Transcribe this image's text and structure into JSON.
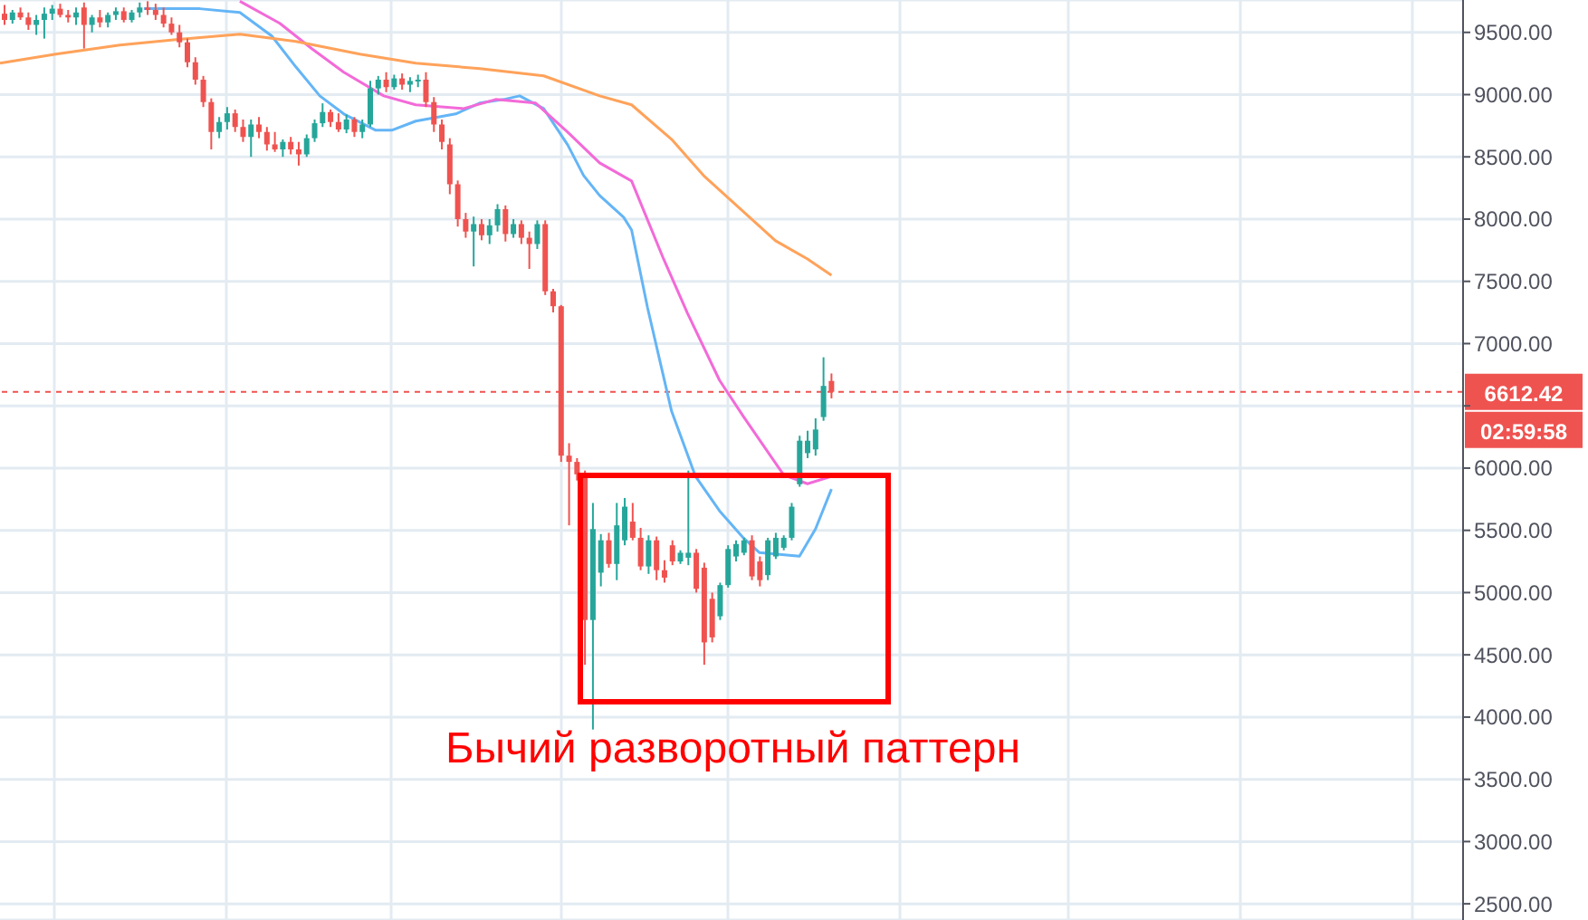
{
  "chart_data": {
    "type": "candlestick",
    "categories": [
      null,
      null,
      null,
      null,
      null,
      null,
      null,
      null,
      null,
      null,
      null,
      null,
      null,
      null,
      null,
      null,
      null,
      null,
      null,
      null,
      null,
      null,
      null,
      null,
      null,
      null,
      null,
      null,
      null,
      null,
      null,
      null,
      null,
      null,
      null,
      null,
      null,
      null,
      null,
      null,
      null,
      null,
      null,
      null,
      null,
      null,
      null,
      null,
      null,
      null,
      null,
      null,
      null,
      null,
      null,
      null,
      null,
      null,
      null,
      null,
      null,
      null,
      null,
      null,
      null,
      null,
      null,
      null,
      null,
      null,
      null,
      null,
      null,
      null,
      null,
      null,
      null,
      null,
      null,
      null,
      null,
      null,
      null,
      null,
      null,
      null,
      null,
      null,
      null,
      null,
      null,
      null,
      null,
      null,
      null,
      null,
      null,
      null,
      null,
      null,
      null,
      null,
      null,
      null,
      null,
      null,
      null,
      null,
      null,
      null,
      null,
      null,
      null,
      null,
      null,
      null,
      null,
      null,
      null,
      null,
      null,
      null,
      null,
      null,
      null,
      null,
      null,
      null,
      null,
      null,
      null,
      null,
      null,
      null,
      null,
      null,
      null,
      null,
      null,
      null,
      null,
      null,
      null,
      null,
      null,
      null,
      null,
      null,
      null,
      null,
      null,
      null,
      null,
      null,
      null,
      null,
      null,
      null,
      null,
      null,
      null,
      null,
      null,
      null,
      null,
      null,
      null,
      null,
      null,
      null,
      null,
      null,
      null,
      null,
      null,
      null,
      null,
      null,
      null,
      null,
      null,
      null,
      null,
      null
    ],
    "ohlc": [
      [
        9650,
        9720,
        9560,
        9600
      ],
      [
        9600,
        9680,
        9570,
        9660
      ],
      [
        9660,
        9700,
        9600,
        9620
      ],
      [
        9620,
        9660,
        9520,
        9560
      ],
      [
        9560,
        9640,
        9480,
        9600
      ],
      [
        9600,
        9700,
        9450,
        9650
      ],
      [
        9650,
        9720,
        9600,
        9690
      ],
      [
        9690,
        9730,
        9620,
        9640
      ],
      [
        9640,
        9680,
        9580,
        9620
      ],
      [
        9620,
        9700,
        9560,
        9660
      ],
      [
        9700,
        9740,
        9370,
        9560
      ],
      [
        9560,
        9640,
        9500,
        9620
      ],
      [
        9620,
        9680,
        9540,
        9580
      ],
      [
        9580,
        9660,
        9540,
        9640
      ],
      [
        9640,
        9700,
        9600,
        9670
      ],
      [
        9670,
        9700,
        9580,
        9600
      ],
      [
        9600,
        9680,
        9580,
        9660
      ],
      [
        9660,
        9740,
        9620,
        9700
      ],
      [
        9700,
        9750,
        9640,
        9680
      ],
      [
        9680,
        9730,
        9600,
        9640
      ],
      [
        9640,
        9700,
        9540,
        9570
      ],
      [
        9570,
        9620,
        9480,
        9500
      ],
      [
        9500,
        9560,
        9380,
        9420
      ],
      [
        9420,
        9450,
        9220,
        9260
      ],
      [
        9260,
        9300,
        9080,
        9120
      ],
      [
        9120,
        9150,
        8900,
        8940
      ],
      [
        8940,
        8970,
        8560,
        8700
      ],
      [
        8700,
        8820,
        8650,
        8780
      ],
      [
        8780,
        8900,
        8720,
        8850
      ],
      [
        8850,
        8880,
        8700,
        8740
      ],
      [
        8740,
        8800,
        8620,
        8660
      ],
      [
        8660,
        8800,
        8500,
        8760
      ],
      [
        8760,
        8820,
        8650,
        8700
      ],
      [
        8700,
        8740,
        8550,
        8600
      ],
      [
        8600,
        8700,
        8540,
        8560
      ],
      [
        8560,
        8640,
        8500,
        8620
      ],
      [
        8620,
        8660,
        8520,
        8560
      ],
      [
        8560,
        8620,
        8430,
        8520
      ],
      [
        8520,
        8680,
        8500,
        8650
      ],
      [
        8650,
        8800,
        8620,
        8770
      ],
      [
        8770,
        8930,
        8740,
        8860
      ],
      [
        8860,
        8880,
        8740,
        8780
      ],
      [
        8780,
        8850,
        8700,
        8720
      ],
      [
        8720,
        8840,
        8690,
        8800
      ],
      [
        8800,
        8820,
        8660,
        8700
      ],
      [
        8700,
        8800,
        8650,
        8760
      ],
      [
        8760,
        9110,
        8740,
        9050
      ],
      [
        9050,
        9150,
        9000,
        9120
      ],
      [
        9120,
        9180,
        9020,
        9060
      ],
      [
        9060,
        9160,
        9040,
        9130
      ],
      [
        9130,
        9170,
        9040,
        9080
      ],
      [
        9080,
        9140,
        9020,
        9110
      ],
      [
        9110,
        9160,
        9060,
        9120
      ],
      [
        9120,
        9180,
        8900,
        8940
      ],
      [
        8940,
        8980,
        8700,
        8760
      ],
      [
        8760,
        8800,
        8560,
        8620
      ],
      [
        8600,
        8650,
        8200,
        8280
      ],
      [
        8280,
        8310,
        7940,
        8000
      ],
      [
        8000,
        8050,
        7850,
        7900
      ],
      [
        7900,
        8020,
        7620,
        7960
      ],
      [
        7960,
        8000,
        7830,
        7870
      ],
      [
        7870,
        8000,
        7800,
        7950
      ],
      [
        7950,
        8120,
        7900,
        8080
      ],
      [
        8080,
        8110,
        7820,
        7880
      ],
      [
        7880,
        8000,
        7850,
        7960
      ],
      [
        7960,
        7990,
        7800,
        7850
      ],
      [
        7850,
        7900,
        7600,
        7800
      ],
      [
        7800,
        7990,
        7760,
        7960
      ],
      [
        7960,
        7990,
        7390,
        7420
      ],
      [
        7420,
        7440,
        7250,
        7300
      ],
      [
        7300,
        7310,
        6050,
        6100
      ],
      [
        6100,
        6200,
        5540,
        6050
      ],
      [
        6050,
        6080,
        5900,
        5950
      ],
      [
        5950,
        5980,
        4420,
        4780
      ],
      [
        4780,
        5720,
        3900,
        5510
      ],
      [
        5160,
        5470,
        5050,
        5420
      ],
      [
        5420,
        5480,
        5200,
        5230
      ],
      [
        5230,
        5720,
        5100,
        5540
      ],
      [
        5420,
        5760,
        5380,
        5690
      ],
      [
        5570,
        5720,
        5420,
        5440
      ],
      [
        5440,
        5520,
        5180,
        5210
      ],
      [
        5210,
        5460,
        5150,
        5420
      ],
      [
        5420,
        5450,
        5100,
        5180
      ],
      [
        5180,
        5260,
        5080,
        5120
      ],
      [
        5380,
        5420,
        5220,
        5250
      ],
      [
        5250,
        5340,
        5230,
        5320
      ],
      [
        5280,
        5980,
        5220,
        5320
      ],
      [
        5320,
        5350,
        5000,
        5030
      ],
      [
        5200,
        5240,
        4420,
        4600
      ],
      [
        4950,
        5000,
        4600,
        4640
      ],
      [
        4810,
        5080,
        4780,
        5060
      ],
      [
        5060,
        5380,
        5040,
        5350
      ],
      [
        5290,
        5420,
        5250,
        5390
      ],
      [
        5320,
        5440,
        5300,
        5420
      ],
      [
        5420,
        5460,
        5100,
        5130
      ],
      [
        5250,
        5290,
        5050,
        5100
      ],
      [
        5140,
        5440,
        5100,
        5420
      ],
      [
        5290,
        5480,
        5270,
        5440
      ],
      [
        5360,
        5460,
        5340,
        5440
      ],
      [
        5440,
        5720,
        5420,
        5690
      ],
      [
        5870,
        6260,
        5850,
        6220
      ],
      [
        6120,
        6300,
        6080,
        6220
      ],
      [
        6150,
        6400,
        6100,
        6310
      ],
      [
        6410,
        6890,
        6380,
        6660
      ],
      [
        6700,
        6760,
        6560,
        6612.42
      ],
      null,
      null,
      null,
      null,
      null,
      null,
      null,
      null,
      null,
      null,
      null,
      null,
      null,
      null,
      null,
      null,
      null,
      null,
      null,
      null,
      null,
      null,
      null,
      null,
      null,
      null,
      null,
      null,
      null,
      null,
      null,
      null,
      null,
      null,
      null,
      null,
      null,
      null,
      null,
      null,
      null,
      null,
      null,
      null,
      null,
      null,
      null,
      null,
      null,
      null,
      null,
      null,
      null,
      null,
      null,
      null,
      null,
      null,
      null,
      null,
      null,
      null,
      null,
      null,
      null,
      null,
      null,
      null,
      null,
      null,
      null,
      null,
      null,
      null,
      null,
      null,
      null,
      null,
      null
    ],
    "colors": [
      "#ef5350",
      "#26a69a",
      "#ef5350",
      "#ef5350",
      "#26a69a",
      "#26a69a",
      "#26a69a",
      "#ef5350",
      "#ef5350",
      "#26a69a",
      "#ef5350",
      "#26a69a",
      "#ef5350",
      "#26a69a",
      "#26a69a",
      "#ef5350",
      "#26a69a",
      "#26a69a",
      "#ef5350",
      "#ef5350",
      "#ef5350",
      "#ef5350",
      "#ef5350",
      "#ef5350",
      "#ef5350",
      "#ef5350",
      "#ef5350",
      "#26a69a",
      "#26a69a",
      "#ef5350",
      "#ef5350",
      "#26a69a",
      "#ef5350",
      "#ef5350",
      "#ef5350",
      "#26a69a",
      "#ef5350",
      "#ef5350",
      "#26a69a",
      "#26a69a",
      "#26a69a",
      "#ef5350",
      "#ef5350",
      "#26a69a",
      "#ef5350",
      "#26a69a",
      "#26a69a",
      "#26a69a",
      "#ef5350",
      "#26a69a",
      "#ef5350",
      "#26a69a",
      "#26a69a",
      "#ef5350",
      "#ef5350",
      "#ef5350",
      "#ef5350",
      "#ef5350",
      "#ef5350",
      "#26a69a",
      "#ef5350",
      "#26a69a",
      "#26a69a",
      "#ef5350",
      "#26a69a",
      "#ef5350",
      "#ef5350",
      "#26a69a",
      "#ef5350",
      "#ef5350",
      "#ef5350",
      "#ef5350",
      "#ef5350",
      "#ef5350",
      "#26a69a",
      "#26a69a",
      "#ef5350",
      "#26a69a",
      "#26a69a",
      "#ef5350",
      "#ef5350",
      "#26a69a",
      "#ef5350",
      "#ef5350",
      "#ef5350",
      "#26a69a",
      "#26a69a",
      "#ef5350",
      "#ef5350",
      "#ef5350",
      "#26a69a",
      "#26a69a",
      "#26a69a",
      "#26a69a",
      "#ef5350",
      "#ef5350",
      "#26a69a",
      "#26a69a",
      "#26a69a",
      "#26a69a",
      "#26a69a",
      "#26a69a",
      "#26a69a",
      "#26a69a",
      "#ef5350",
      null,
      null,
      null,
      null,
      null,
      null,
      null,
      null,
      null,
      null,
      null,
      null,
      null,
      null,
      null,
      null,
      null,
      null,
      null,
      null,
      null,
      null,
      null,
      null,
      null,
      null,
      null,
      null,
      null,
      null,
      null,
      null,
      null,
      null,
      null,
      null,
      null,
      null,
      null,
      null,
      null,
      null,
      null,
      null,
      null,
      null,
      null,
      null,
      null,
      null,
      null,
      null,
      null,
      null,
      null,
      null,
      null,
      null,
      null,
      null,
      null,
      null,
      null,
      null,
      null,
      null,
      null,
      null,
      null,
      null,
      null,
      null,
      null,
      null,
      null,
      null,
      null,
      null,
      null
    ],
    "series": [
      {
        "type": "line",
        "color": "#64b5f6",
        "values": [
          null,
          null,
          null,
          null,
          null,
          null,
          null,
          null,
          null,
          null,
          null,
          null,
          null,
          null,
          null,
          null,
          null,
          null,
          9690,
          null,
          null,
          null,
          null,
          null,
          null,
          9690,
          null,
          null,
          null,
          null,
          9660,
          null,
          null,
          null,
          9471,
          null,
          null,
          9223,
          null,
          null,
          8990,
          null,
          null,
          8845,
          null,
          null,
          null,
          8714,
          null,
          8714,
          null,
          null,
          8787,
          null,
          null,
          null,
          null,
          8845,
          null,
          null,
          8932,
          null,
          null,
          8961,
          null,
          8990,
          null,
          null,
          8888,
          null,
          null,
          8597,
          null,
          8350,
          null,
          8190,
          null,
          null,
          8015,
          7913,
          null,
          7287,
          null,
          null,
          6457,
          null,
          null,
          5933,
          null,
          null,
          5656,
          null,
          null,
          5438,
          null,
          5321,
          null,
          null,
          null,
          null,
          5292,
          null,
          5510,
          null,
          5831,
          null,
          null,
          null,
          null,
          null,
          null,
          null,
          null,
          null,
          null,
          null,
          null,
          null,
          null,
          null,
          null,
          null,
          null,
          null,
          null,
          null,
          null,
          null,
          null,
          null,
          null,
          null,
          null,
          null,
          null,
          null,
          null,
          null,
          null,
          null,
          null,
          null,
          null,
          null,
          null,
          null,
          null,
          null,
          null,
          null,
          null,
          null,
          null,
          null,
          null,
          null,
          null,
          null,
          null,
          null,
          null,
          null,
          null,
          null,
          null,
          null,
          null,
          null,
          null,
          null,
          null,
          null,
          null,
          null,
          null,
          null,
          null,
          null,
          null,
          null,
          null,
          null,
          null,
          null
        ]
      },
      {
        "type": "line",
        "color": "#f36ad8",
        "values": [
          null,
          null,
          null,
          null,
          null,
          null,
          null,
          null,
          null,
          null,
          null,
          null,
          null,
          null,
          null,
          null,
          null,
          null,
          null,
          null,
          null,
          null,
          null,
          null,
          null,
          null,
          null,
          null,
          null,
          null,
          9750,
          null,
          null,
          null,
          null,
          9573,
          null,
          null,
          null,
          9369,
          null,
          null,
          null,
          9180,
          null,
          null,
          null,
          null,
          8990,
          null,
          null,
          null,
          8918,
          null,
          null,
          null,
          null,
          null,
          8888,
          null,
          null,
          null,
          8961,
          null,
          null,
          null,
          null,
          8932,
          null,
          null,
          null,
          8699,
          null,
          null,
          null,
          8452,
          null,
          null,
          null,
          8306,
          null,
          null,
          null,
          7680,
          null,
          null,
          7243,
          null,
          null,
          null,
          6705,
          null,
          null,
          6413,
          null,
          null,
          null,
          null,
          5947,
          null,
          null,
          5874,
          null,
          null,
          5933,
          null,
          null,
          null,
          null,
          null,
          null,
          null,
          null,
          null,
          null,
          null,
          null,
          null,
          null,
          null,
          null,
          null,
          null,
          null,
          null,
          null,
          null,
          null,
          null,
          null,
          null,
          null,
          null,
          null,
          null,
          null,
          null,
          null,
          null,
          null,
          null,
          null,
          null,
          null,
          null,
          null,
          null,
          null,
          null,
          null,
          null,
          null,
          null,
          null,
          null,
          null,
          null,
          null,
          null,
          null,
          null,
          null,
          null,
          null,
          null,
          null,
          null,
          null,
          null,
          null,
          null,
          null,
          null,
          null,
          null,
          null,
          null,
          null,
          null,
          null,
          null,
          null,
          null,
          null
        ]
      },
      {
        "type": "line",
        "color": "#ffa25a",
        "values": [
          9252,
          null,
          null,
          null,
          null,
          null,
          null,
          9325,
          null,
          null,
          null,
          null,
          null,
          null,
          null,
          9398,
          null,
          null,
          null,
          null,
          null,
          null,
          9442,
          null,
          null,
          null,
          null,
          null,
          null,
          null,
          9485,
          null,
          null,
          null,
          null,
          null,
          null,
          9427,
          null,
          null,
          null,
          null,
          null,
          null,
          null,
          9325,
          null,
          null,
          null,
          null,
          null,
          null,
          9252,
          null,
          null,
          null,
          null,
          null,
          null,
          null,
          9209,
          null,
          null,
          null,
          null,
          null,
          null,
          null,
          9151,
          null,
          null,
          null,
          null,
          null,
          null,
          8990,
          null,
          null,
          null,
          8918,
          null,
          null,
          null,
          null,
          8641,
          null,
          null,
          null,
          8350,
          null,
          null,
          null,
          null,
          8059,
          null,
          null,
          null,
          7826,
          null,
          null,
          null,
          7680,
          null,
          null,
          7549,
          null,
          null,
          null,
          null,
          null,
          null,
          null,
          null,
          null,
          null,
          null,
          null,
          null,
          null,
          null,
          null,
          null,
          null,
          null,
          null,
          null,
          null,
          null,
          null,
          null,
          null,
          null,
          null,
          null,
          null,
          null,
          null,
          null,
          null,
          null,
          null,
          null,
          null,
          null,
          null,
          null,
          null,
          null,
          null,
          null,
          null,
          null,
          null,
          null,
          null,
          null,
          null,
          null,
          null,
          null,
          null,
          null,
          null,
          null,
          null,
          null,
          null,
          null,
          null,
          null,
          null,
          null,
          null,
          null,
          null,
          null,
          null,
          null,
          null,
          null,
          null,
          null,
          null,
          null
        ]
      }
    ],
    "ylim": [
      2370,
      9760
    ],
    "yticks": [
      {
        "value": 2500,
        "label": "2500.00"
      },
      {
        "value": 3000,
        "label": "3000.00"
      },
      {
        "value": 3500,
        "label": "3500.00"
      },
      {
        "value": 4000,
        "label": "4000.00"
      },
      {
        "value": 4500,
        "label": "4500.00"
      },
      {
        "value": 5000,
        "label": "5000.00"
      },
      {
        "value": 5500,
        "label": "5500.00"
      },
      {
        "value": 6000,
        "label": "6000.00"
      },
      {
        "value": 6500,
        "label": null
      },
      {
        "value": 7000,
        "label": "7000.00"
      },
      {
        "value": 7500,
        "label": "7500.00"
      },
      {
        "value": 8000,
        "label": "8000.00"
      },
      {
        "value": 8500,
        "label": "8500.00"
      },
      {
        "value": 9000,
        "label": "9000.00"
      },
      {
        "value": 9500,
        "label": "9500.00"
      }
    ],
    "tick_labels": "y",
    "grid": true,
    "marker": "none",
    "ref_lines": [
      {
        "axis": "y",
        "value": 6612.42,
        "label": "6612.42",
        "color": "#ef5350",
        "line_style": "dashed"
      }
    ],
    "annotations": [
      "02:59:58",
      "Бычий разворотный паттерн"
    ]
  }
}
